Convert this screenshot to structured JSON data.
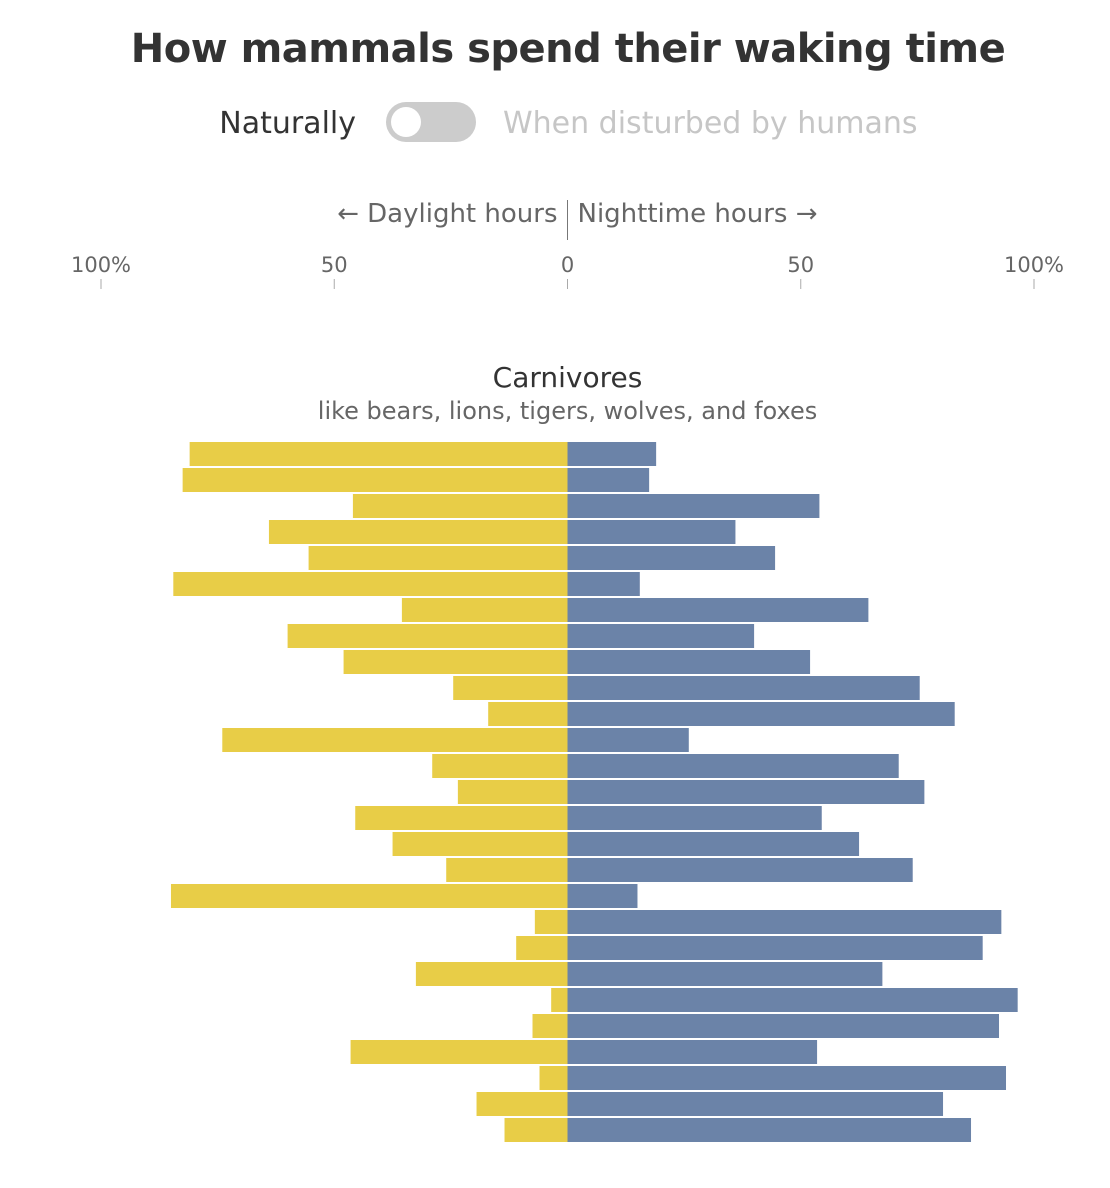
{
  "title": "How mammals spend their waking time",
  "toggle": {
    "left_label": "Naturally",
    "right_label": "When disturbed by humans",
    "state": "off"
  },
  "colors": {
    "daylight": "#e8cd47",
    "nighttime": "#6b83a8",
    "toggle_track": "#cccccc",
    "inactive_text": "#c6c6c6"
  },
  "chart_data": {
    "type": "bar",
    "orientation": "horizontal-diverging",
    "left_axis_label": "← Daylight hours",
    "right_axis_label": "Nighttime hours →",
    "tick_labels": [
      "100%",
      "50",
      "0",
      "50",
      "100%"
    ],
    "tick_values": [
      -100,
      -50,
      0,
      50,
      100
    ],
    "xlim": [
      -100,
      100
    ],
    "panel_title": "Carnivores",
    "panel_subtitle": "like bears, lions, tigers, wolves, and foxes",
    "series": [
      {
        "name": "Daylight",
        "values": [
          81,
          82.5,
          46,
          64,
          55.5,
          84.5,
          35.5,
          60,
          48,
          24.5,
          17,
          74,
          29,
          23.5,
          45.5,
          37.5,
          26,
          85,
          7,
          11,
          32.5,
          3.5,
          7.5,
          46.5,
          6,
          19.5,
          13.5
        ]
      },
      {
        "name": "Nighttime",
        "values": [
          19,
          17.5,
          54,
          36,
          44.5,
          15.5,
          64.5,
          40,
          52,
          75.5,
          83,
          26,
          71,
          76.5,
          54.5,
          62.5,
          74,
          15,
          93,
          89,
          67.5,
          96.5,
          92.5,
          53.5,
          94,
          80.5,
          86.5
        ]
      }
    ]
  }
}
